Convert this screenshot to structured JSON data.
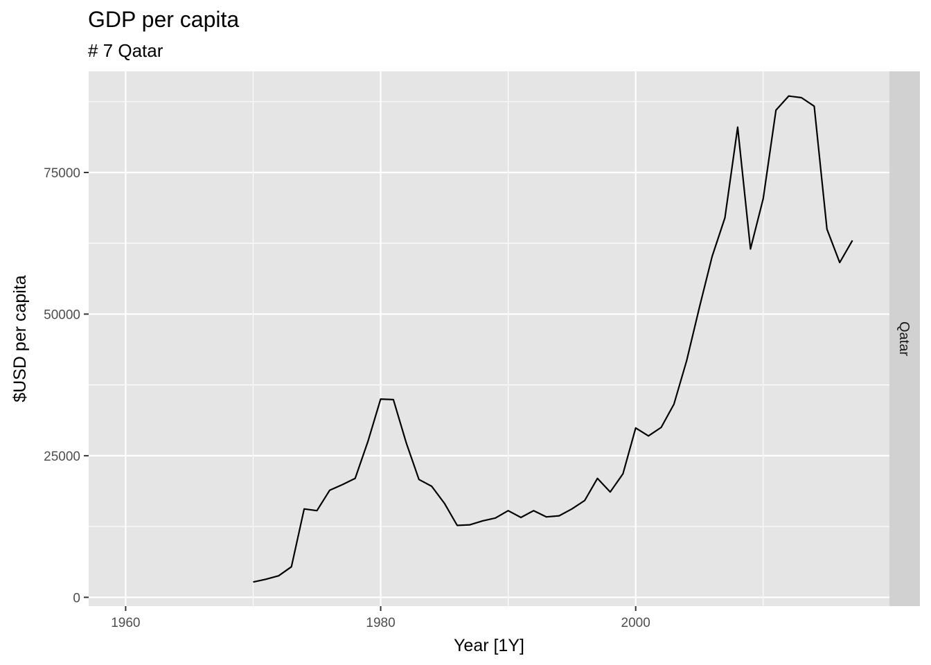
{
  "chart_data": {
    "type": "line",
    "title": "GDP per capita",
    "subtitle": "# 7 Qatar",
    "xlabel": "Year [1Y]",
    "ylabel": "$USD per capita",
    "facet_label": "Qatar",
    "xlim": [
      1957.1,
      2019.9
    ],
    "ylim": [
      -1550,
      92850
    ],
    "x_ticks": [
      1960,
      1980,
      2000
    ],
    "x_tick_labels": [
      "1960",
      "1980",
      "2000"
    ],
    "x_minor_ticks": [
      1970,
      1990,
      2010
    ],
    "y_ticks": [
      0,
      25000,
      50000,
      75000
    ],
    "y_tick_labels": [
      "0",
      "25000",
      "50000",
      "75000"
    ],
    "y_minor_ticks": [
      12500,
      37500,
      62500,
      87500
    ],
    "grid": true,
    "colors": {
      "panel": "#e5e5e5",
      "grid": "#ffffff",
      "line": "#000000",
      "strip": "#d1d1d1",
      "tick": "#333333"
    },
    "series": [
      {
        "x": [
          1970,
          1971,
          1972,
          1973,
          1974,
          1975,
          1976,
          1977,
          1978,
          1979,
          1980,
          1981,
          1982,
          1983,
          1984,
          1985,
          1986,
          1987,
          1988,
          1989,
          1990,
          1991,
          1992,
          1993,
          1994,
          1995,
          1996,
          1997,
          1998,
          1999,
          2000,
          2001,
          2002,
          2003,
          2004,
          2005,
          2006,
          2007,
          2008,
          2009,
          2010,
          2011,
          2012,
          2013,
          2014,
          2015,
          2016,
          2017
        ],
        "values": [
          2700,
          3200,
          3800,
          5400,
          15600,
          15300,
          18900,
          19900,
          21000,
          27500,
          35000,
          34900,
          27300,
          20800,
          19600,
          16600,
          12700,
          12800,
          13500,
          14000,
          15300,
          14100,
          15300,
          14200,
          14400,
          15600,
          17100,
          21000,
          18600,
          21800,
          29900,
          28500,
          30000,
          34100,
          41800,
          51200,
          60200,
          67000,
          83000,
          61500,
          70400,
          86000,
          88500,
          88200,
          86700,
          65000,
          59100,
          63000
        ]
      }
    ]
  }
}
